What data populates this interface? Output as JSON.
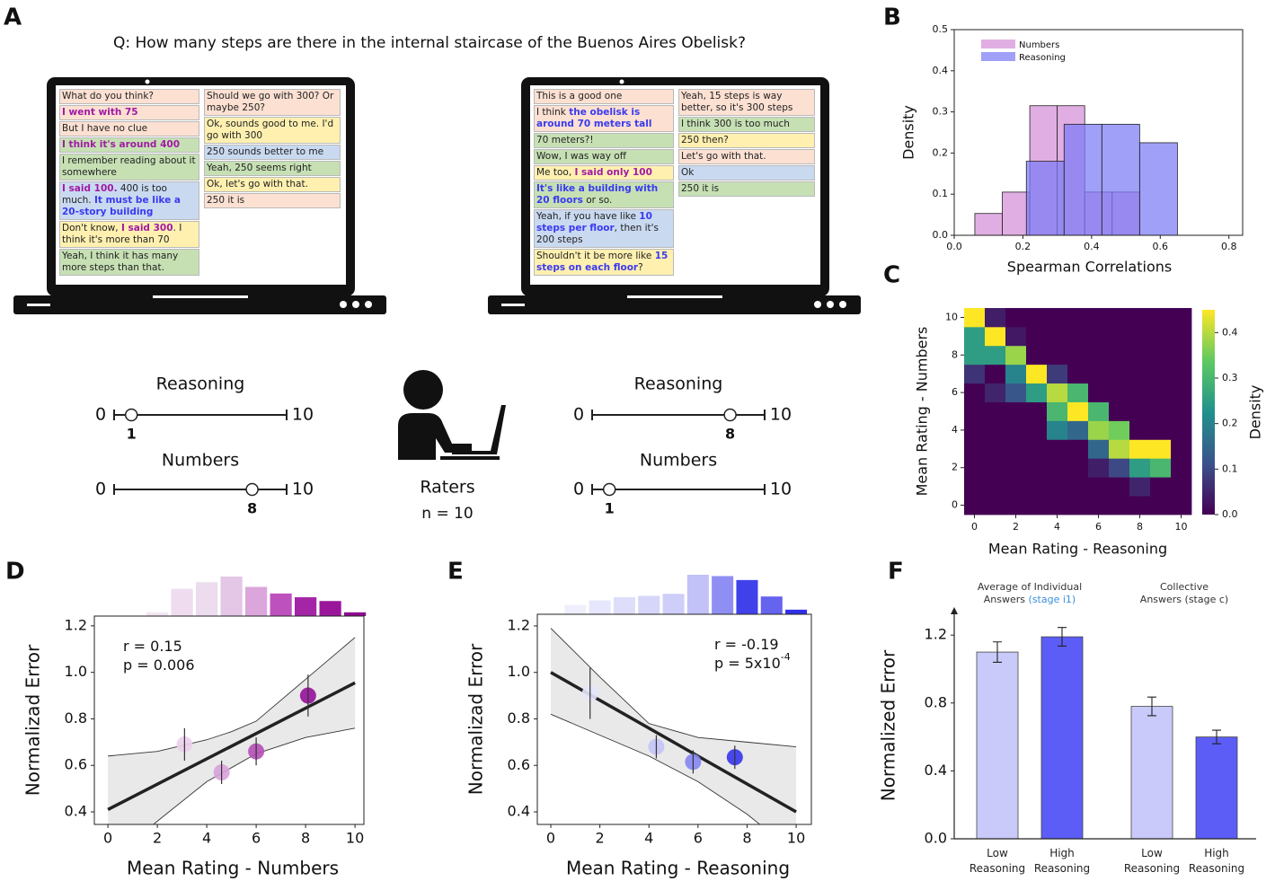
{
  "panel_a": {
    "label": "A",
    "question": "Q: How many steps are there in the internal staircase of the Buenos Aires Obelisk?",
    "laptops": [
      {
        "columns": [
          [
            {
              "bg": "#fce0d2",
              "parts": [
                {
                  "text": "What do you think?"
                }
              ]
            },
            {
              "bg": "#fce0d2",
              "parts": [
                {
                  "text": "I went with 75",
                  "style": "numbers"
                }
              ]
            },
            {
              "bg": "#fce0d2",
              "parts": [
                {
                  "text": "But I have no clue"
                }
              ]
            },
            {
              "bg": "#c6e0b4",
              "parts": [
                {
                  "text": "I think it's around 400",
                  "style": "numbers"
                }
              ]
            },
            {
              "bg": "#c6e0b4",
              "parts": [
                {
                  "text": "I remember reading about it somewhere"
                }
              ]
            },
            {
              "bg": "#c9d9f0",
              "parts": [
                {
                  "text": "I said 100.",
                  "style": "numbers"
                },
                {
                  "text": " 400 is too much. "
                },
                {
                  "text": "It must be like a 20-story building",
                  "style": "reasoning"
                }
              ]
            },
            {
              "bg": "#fff0b0",
              "parts": [
                {
                  "text": "Don't know, "
                },
                {
                  "text": "I said 300",
                  "style": "numbers"
                },
                {
                  "text": ". I think it's more than 70"
                }
              ]
            },
            {
              "bg": "#c6e0b4",
              "parts": [
                {
                  "text": "Yeah, I think it has many more steps than that."
                }
              ]
            }
          ],
          [
            {
              "bg": "#fce0d2",
              "parts": [
                {
                  "text": "Should we go with 300? Or maybe 250?"
                }
              ]
            },
            {
              "bg": "#fff0b0",
              "parts": [
                {
                  "text": "Ok, sounds good to me. I'd go with 300"
                }
              ]
            },
            {
              "bg": "#c9d9f0",
              "parts": [
                {
                  "text": "250 sounds better to me"
                }
              ]
            },
            {
              "bg": "#c6e0b4",
              "parts": [
                {
                  "text": "Yeah, 250 seems right"
                }
              ]
            },
            {
              "bg": "#fff0b0",
              "parts": [
                {
                  "text": "Ok, let's go with that."
                }
              ]
            },
            {
              "bg": "#fce0d2",
              "parts": [
                {
                  "text": "250 it is"
                }
              ]
            }
          ]
        ],
        "sliders": [
          {
            "label": "Reasoning",
            "min": 0,
            "max": 10,
            "value": 1
          },
          {
            "label": "Numbers",
            "min": 0,
            "max": 10,
            "value": 8
          }
        ]
      },
      {
        "columns": [
          [
            {
              "bg": "#fce0d2",
              "parts": [
                {
                  "text": "This is a good one"
                }
              ]
            },
            {
              "bg": "#fce0d2",
              "parts": [
                {
                  "text": "I think "
                },
                {
                  "text": "the obelisk is around 70 meters tall",
                  "style": "reasoning"
                }
              ]
            },
            {
              "bg": "#c6e0b4",
              "parts": [
                {
                  "text": "70 meters?!"
                }
              ]
            },
            {
              "bg": "#c6e0b4",
              "parts": [
                {
                  "text": "Wow, I was way off"
                }
              ]
            },
            {
              "bg": "#fff0b0",
              "parts": [
                {
                  "text": "Me too, "
                },
                {
                  "text": "I said only 100",
                  "style": "numbers"
                }
              ]
            },
            {
              "bg": "#c6e0b4",
              "parts": [
                {
                  "text": "It's like a building with 20 floors",
                  "style": "reasoning"
                },
                {
                  "text": " or so."
                }
              ]
            },
            {
              "bg": "#c9d9f0",
              "parts": [
                {
                  "text": "Yeah, if you have like "
                },
                {
                  "text": "10 steps per floor",
                  "style": "reasoning"
                },
                {
                  "text": ", then it's 200 steps"
                }
              ]
            },
            {
              "bg": "#fff0b0",
              "parts": [
                {
                  "text": "Shouldn't it be more like "
                },
                {
                  "text": "15 steps on each floor",
                  "style": "reasoning"
                },
                {
                  "text": "?"
                }
              ]
            }
          ],
          [
            {
              "bg": "#fce0d2",
              "parts": [
                {
                  "text": "Yeah, 15 steps is way better, so it's 300 steps"
                }
              ]
            },
            {
              "bg": "#c6e0b4",
              "parts": [
                {
                  "text": "I think 300 is too much"
                }
              ]
            },
            {
              "bg": "#fff0b0",
              "parts": [
                {
                  "text": "250 then?"
                }
              ]
            },
            {
              "bg": "#fce0d2",
              "parts": [
                {
                  "text": "Let's go with that."
                }
              ]
            },
            {
              "bg": "#c9d9f0",
              "parts": [
                {
                  "text": "Ok"
                }
              ]
            },
            {
              "bg": "#c6e0b4",
              "parts": [
                {
                  "text": "250 it is"
                }
              ]
            }
          ]
        ],
        "sliders": [
          {
            "label": "Reasoning",
            "min": 0,
            "max": 10,
            "value": 8
          },
          {
            "label": "Numbers",
            "min": 0,
            "max": 10,
            "value": 1
          }
        ]
      }
    ],
    "raters": {
      "title": "Raters",
      "n": "n = 10"
    }
  },
  "chart_data": [
    {
      "type": "histogram",
      "label": "B",
      "x_label": "Spearman Correlations",
      "y_label": "Density",
      "xlim": [
        0,
        0.84
      ],
      "ylim": [
        0,
        0.5
      ],
      "xticks": [
        {
          "value": 0,
          "label": "0.0"
        },
        0.2,
        0.4,
        0.6,
        0.8
      ],
      "yticks": [
        {
          "value": 0,
          "label": "0.0"
        },
        0.1,
        0.2,
        0.3,
        0.4,
        0.5
      ],
      "legend": "top-left",
      "series": [
        {
          "name": "Numbers",
          "color": "#d68fd8",
          "bins": [
            0.06,
            0.14,
            0.22,
            0.3,
            0.38,
            0.46,
            0.54
          ],
          "values": [
            0.053,
            0.105,
            0.315,
            0.315,
            0.105,
            0.105
          ]
        },
        {
          "name": "Reasoning",
          "color": "#7c7cf6",
          "bins": [
            0.21,
            0.32,
            0.43,
            0.54,
            0.65
          ],
          "values": [
            0.18,
            0.27,
            0.27,
            0.225
          ]
        }
      ]
    },
    {
      "type": "heatmap",
      "label": "C",
      "x_label": "Mean Rating - Reasoning",
      "y_label": "Mean Rating  - Numbers",
      "colorbar_label": "Density",
      "colormap": "viridis",
      "x": [
        0,
        1,
        2,
        3,
        4,
        5,
        6,
        7,
        8,
        9,
        10
      ],
      "y": [
        0,
        1,
        2,
        3,
        4,
        5,
        6,
        7,
        8,
        9,
        10
      ],
      "xlim": [
        -0.5,
        10.5
      ],
      "ylim": [
        -0.5,
        10.5
      ],
      "xticks": [
        0,
        2,
        4,
        6,
        8,
        10
      ],
      "yticks": [
        0,
        2,
        4,
        6,
        8,
        10
      ],
      "zlim": [
        0,
        0.45
      ],
      "zticks": [
        {
          "value": 0,
          "label": "0.0"
        },
        0.1,
        0.2,
        0.3,
        0.4
      ],
      "z": [
        [
          0,
          0,
          0,
          0,
          0,
          0,
          0,
          0,
          0,
          0,
          0
        ],
        [
          0,
          0,
          0,
          0,
          0,
          0,
          0,
          0,
          0.05,
          0,
          0
        ],
        [
          0,
          0,
          0,
          0,
          0,
          0,
          0.04,
          0.1,
          0.25,
          0.3,
          0
        ],
        [
          0,
          0,
          0,
          0,
          0,
          0,
          0.15,
          0.4,
          0.45,
          0.45,
          0
        ],
        [
          0,
          0,
          0,
          0,
          0.2,
          0.15,
          0.38,
          0.35,
          0,
          0,
          0
        ],
        [
          0,
          0,
          0,
          0,
          0.3,
          0.45,
          0.3,
          0,
          0,
          0,
          0
        ],
        [
          0,
          0.05,
          0.12,
          0.25,
          0.4,
          0.3,
          0,
          0,
          0,
          0,
          0
        ],
        [
          0.07,
          0,
          0.2,
          0.45,
          0.08,
          0,
          0,
          0,
          0,
          0,
          0
        ],
        [
          0.25,
          0.25,
          0.38,
          0,
          0,
          0,
          0,
          0,
          0,
          0,
          0
        ],
        [
          0.25,
          0.45,
          0.03,
          0,
          0,
          0,
          0,
          0,
          0,
          0,
          0
        ],
        [
          0.45,
          0.04,
          0,
          0,
          0,
          0,
          0,
          0,
          0,
          0,
          0
        ]
      ]
    },
    {
      "type": "scatter",
      "label": "D",
      "x_label": "Mean Rating - Numbers",
      "y_label": "Normalizad Error",
      "xlim": [
        -0.55,
        10.36
      ],
      "ylim": [
        0.346,
        1.242
      ],
      "xticks": [
        0,
        2,
        4,
        6,
        8,
        10
      ],
      "yticks": [
        0.4,
        0.6,
        0.8,
        {
          "value": 1,
          "label": "1.0"
        },
        1.2
      ],
      "hist_x": [
        1,
        2,
        3,
        4,
        5,
        6,
        7,
        8,
        9,
        10
      ],
      "hist": [
        0.5,
        4,
        29,
        36,
        42,
        31,
        24,
        20,
        16,
        4
      ],
      "hist_colors": [
        "#f6eef6",
        "#f3e6f3",
        "#efdcef",
        "#ecdcee",
        "#e4c6e6",
        "#dba6dc",
        "#bd52be",
        "#a425a6",
        "#9a179b",
        "#8c0b8e"
      ],
      "x": [
        3.1,
        4.6,
        6.0,
        8.1
      ],
      "values": [
        0.69,
        0.57,
        0.66,
        0.9
      ],
      "errors": [
        0.07,
        0.05,
        0.06,
        0.09
      ],
      "colors": [
        "#ecd0ec",
        "#d8a2d9",
        "#b64fb8",
        "#96119a"
      ],
      "fit_x": [
        0,
        10
      ],
      "fit_y": [
        0.41,
        0.955
      ],
      "band_x": [
        0,
        2,
        4,
        5,
        6,
        8,
        10
      ],
      "band_upper": [
        0.64,
        0.66,
        0.71,
        0.745,
        0.79,
        0.97,
        1.15
      ],
      "band_lower": [
        0.18,
        0.36,
        0.53,
        0.59,
        0.65,
        0.72,
        0.76
      ],
      "annotation_corner": "top-left",
      "annotations": [
        {
          "text": "r = 0.15"
        },
        {
          "text": "p = 0.006"
        }
      ]
    },
    {
      "type": "scatter",
      "label": "E",
      "x_label": "Mean Rating - Reasoning",
      "y_label": "Normalizad Error",
      "xlim": [
        -0.55,
        10.62
      ],
      "ylim": [
        0.346,
        1.25
      ],
      "xticks": [
        0,
        2,
        4,
        6,
        8,
        10
      ],
      "yticks": [
        0.4,
        0.6,
        0.8,
        {
          "value": 1,
          "label": "1.0"
        },
        1.2
      ],
      "hist_x": [
        1,
        2,
        3,
        4,
        5,
        6,
        7,
        8,
        9,
        10
      ],
      "hist": [
        14,
        21,
        26,
        28,
        31,
        60,
        58,
        52,
        27,
        7
      ],
      "hist_colors": [
        "#eeeefd",
        "#e6e6fc",
        "#dedefb",
        "#d6d6fa",
        "#cecef9",
        "#c2c2f8",
        "#8f8ff3",
        "#4141ec",
        "#6464ef",
        "#3030e8"
      ],
      "x": [
        1.6,
        4.3,
        5.8,
        7.5
      ],
      "values": [
        0.91,
        0.68,
        0.615,
        0.635
      ],
      "errors": [
        0.11,
        0.05,
        0.05,
        0.05
      ],
      "colors": [
        "#e6e6fc",
        "#c4c4f7",
        "#8585f1",
        "#3535ec"
      ],
      "fit_x": [
        0,
        10
      ],
      "fit_y": [
        1.0,
        0.4
      ],
      "band_x": [
        0,
        2,
        4,
        6,
        8,
        10
      ],
      "band_upper": [
        1.19,
        0.98,
        0.78,
        0.72,
        0.7,
        0.68
      ],
      "band_lower": [
        0.82,
        0.73,
        0.64,
        0.53,
        0.39,
        0.22
      ],
      "annotation_corner": "top-right",
      "annotations": [
        {
          "text": "r = -0.19"
        },
        {
          "text": "p = 5x10",
          "sup": "-4"
        }
      ]
    },
    {
      "type": "bar",
      "label": "F",
      "y_label": "Normalized Error",
      "ylim": [
        0,
        1.365
      ],
      "yticks": [
        {
          "value": 0,
          "label": "0.0"
        },
        0.4,
        0.8,
        1.2
      ],
      "groups": [
        {
          "parts": [
            {
              "text": "Average of Individual Answers "
            },
            {
              "text": "(stage i1)",
              "color": "#3a8fd8"
            }
          ]
        },
        {
          "parts": [
            {
              "text": "Collective Answers (stage c)"
            }
          ]
        }
      ],
      "categories": [
        "Low Reasoning",
        "High Reasoning",
        "Low Reasoning",
        "High Reasoning"
      ],
      "values": [
        1.1,
        1.19,
        0.78,
        0.6
      ],
      "errors": [
        0.06,
        0.055,
        0.055,
        0.04
      ],
      "colors": [
        "#c9c9fa",
        "#5c5cf6",
        "#c9c9fa",
        "#5c5cf6"
      ]
    }
  ]
}
